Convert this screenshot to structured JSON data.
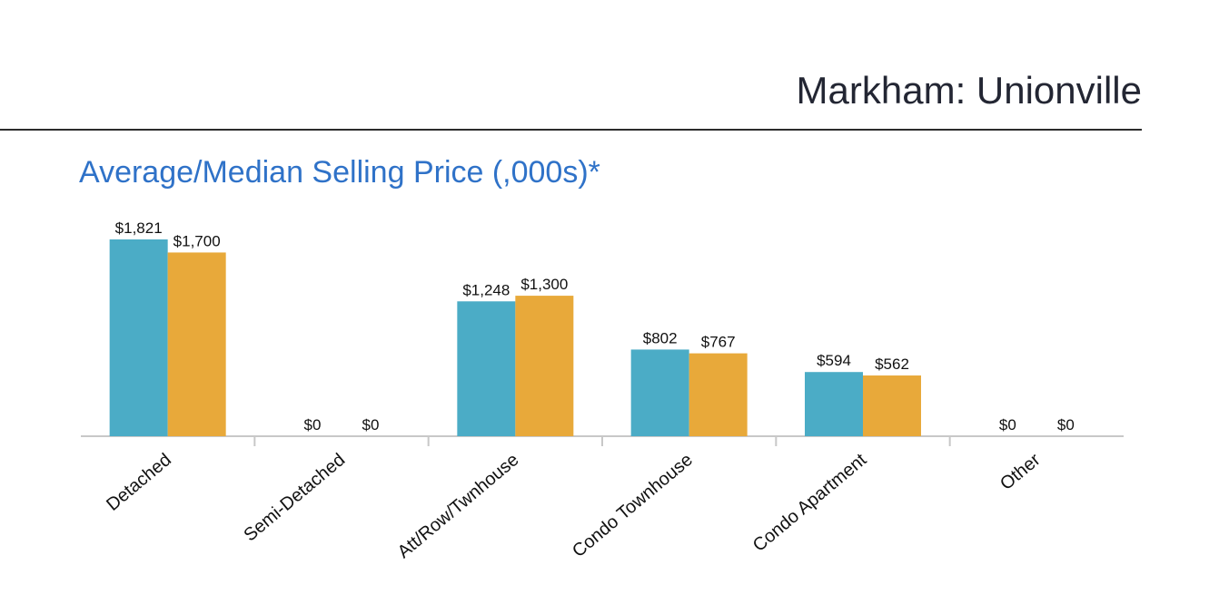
{
  "header": {
    "title": "Markham: Unionville"
  },
  "chart_data": {
    "type": "bar",
    "title": "Average/Median Selling Price (,000s)*",
    "xlabel": "",
    "ylabel": "",
    "ylim": [
      0,
      1821
    ],
    "grid": false,
    "categories": [
      "Detached",
      "Semi-Detached",
      "Att/Row/Twnhouse",
      "Condo Townhouse",
      "Condo Apartment",
      "Other"
    ],
    "series": [
      {
        "name": "Average",
        "color": "#4bacc6",
        "values": [
          1821,
          0,
          1248,
          802,
          594,
          0
        ],
        "labels": [
          "$1,821",
          "$0",
          "$1,248",
          "$802",
          "$594",
          "$0"
        ]
      },
      {
        "name": "Median",
        "color": "#e8a93a",
        "values": [
          1700,
          0,
          1300,
          767,
          562,
          0
        ],
        "labels": [
          "$1,700",
          "$0",
          "$1,300",
          "$767",
          "$562",
          "$0"
        ]
      }
    ]
  }
}
